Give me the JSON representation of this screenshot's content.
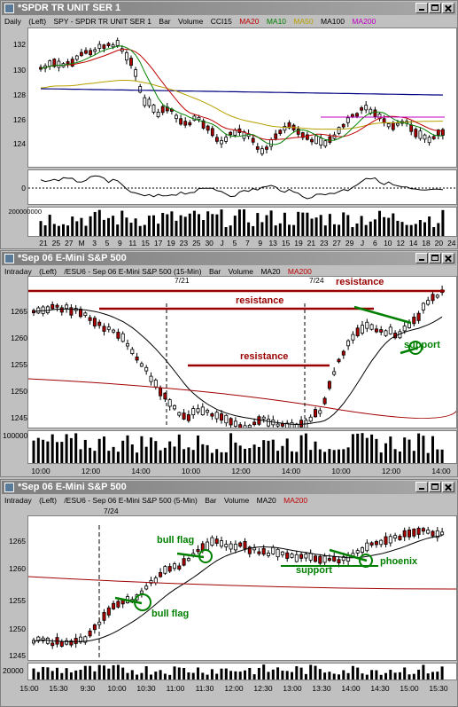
{
  "colors": {
    "ma20": "#c00000",
    "ma10": "#008000",
    "ma50": "#b8a000",
    "ma100": "#000080",
    "ma200": "#c000c0",
    "anno_red": "#990000",
    "anno_green": "#008000"
  },
  "w1": {
    "title": "*SPDR TR UNIT SER 1",
    "header": {
      "period": "Daily",
      "scale": "(Left)",
      "symbol": "SPY - SPDR TR UNIT SER 1",
      "type": "Bar",
      "vol": "Volume",
      "cci": "CCI15",
      "ma20": "MA20",
      "ma10": "MA10",
      "ma50": "MA50",
      "ma100": "MA100",
      "ma200": "MA200"
    },
    "price_ticks": [
      "132",
      "130",
      "128",
      "126",
      "124"
    ],
    "cci_ticks": [
      "0"
    ],
    "volume_tick": "200000000",
    "x_labels": [
      "21",
      "25",
      "27",
      "M",
      "3",
      "5",
      "9",
      "11",
      "15",
      "17",
      "19",
      "23",
      "25",
      "30",
      "J",
      "5",
      "7",
      "9",
      "13",
      "15",
      "19",
      "21",
      "23",
      "27",
      "29",
      "J",
      "6",
      "10",
      "12",
      "14",
      "18",
      "20",
      "24"
    ]
  },
  "w2": {
    "title": "*Sep 06  E-Mini S&P 500",
    "header": {
      "period": "Intraday",
      "scale": "(Left)",
      "symbol": "/ESU6 - Sep 06  E-Mini S&P 500 (15-Min)",
      "type": "Bar",
      "vol": "Volume",
      "ma20": "MA20",
      "ma200": "MA200"
    },
    "price_ticks": [
      "1265",
      "1260",
      "1255",
      "1250",
      "1245"
    ],
    "volume_tick": "100000",
    "dates": [
      "7/21",
      "7/24"
    ],
    "x_labels": [
      "10:00",
      "12:00",
      "14:00",
      "10:00",
      "12:00",
      "14:00",
      "10:00",
      "12:00",
      "14:00"
    ],
    "annotations": {
      "resistance1": "resistance",
      "resistance2": "resistance",
      "resistance3": "resistance",
      "support": "support"
    }
  },
  "w3": {
    "title": "*Sep 06  E-Mini S&P 500",
    "header": {
      "period": "Intraday",
      "scale": "(Left)",
      "symbol": "/ESU6 - Sep 06  E-Mini S&P 500 (5-Min)",
      "type": "Bar",
      "vol": "Volume",
      "ma20": "MA20",
      "ma200": "MA200"
    },
    "price_ticks": [
      "1265",
      "1260",
      "1255",
      "1250",
      "1245"
    ],
    "volume_tick": "20000",
    "dates": [
      "7/24"
    ],
    "x_labels": [
      "15:00",
      "15:30",
      "9:30",
      "10:00",
      "10:30",
      "11:00",
      "11:30",
      "12:00",
      "12:30",
      "13:00",
      "13:30",
      "14:00",
      "14:30",
      "15:00",
      "15:30"
    ],
    "annotations": {
      "bull_flag1": "bull flag",
      "bull_flag2": "bull flag",
      "support": "support",
      "phoenix": "phoenix"
    }
  }
}
